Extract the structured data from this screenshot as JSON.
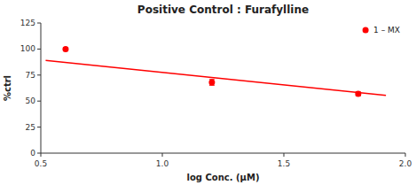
{
  "chart_data": {
    "type": "scatter",
    "title": "Positive Control : Furafylline",
    "xlabel": "log Conc. (μM)",
    "ylabel": "%ctrl",
    "xlim": [
      0.5,
      2.0
    ],
    "ylim": [
      0,
      125
    ],
    "xticks": [
      0.5,
      {
        "value": 1.0,
        "label": "1.0"
      },
      1.5,
      {
        "value": 2.0,
        "label": "2.0"
      }
    ],
    "yticks": [
      0,
      25,
      50,
      75,
      100,
      125
    ],
    "legend": "upper right",
    "grid": false,
    "series": [
      {
        "name": "1 – MX",
        "type": "scatter",
        "color": "#ff0000",
        "marker": "circle",
        "x": [
          0.602,
          1.204,
          1.806
        ],
        "values": [
          100.0,
          68.0,
          57.0
        ],
        "errors": [
          1.5,
          2.8,
          1.8
        ]
      },
      {
        "type": "line",
        "color": "#ff0000",
        "line_style": "solid",
        "x": [
          0.52,
          1.92
        ],
        "values": [
          89.02,
          55.42
        ]
      }
    ]
  }
}
